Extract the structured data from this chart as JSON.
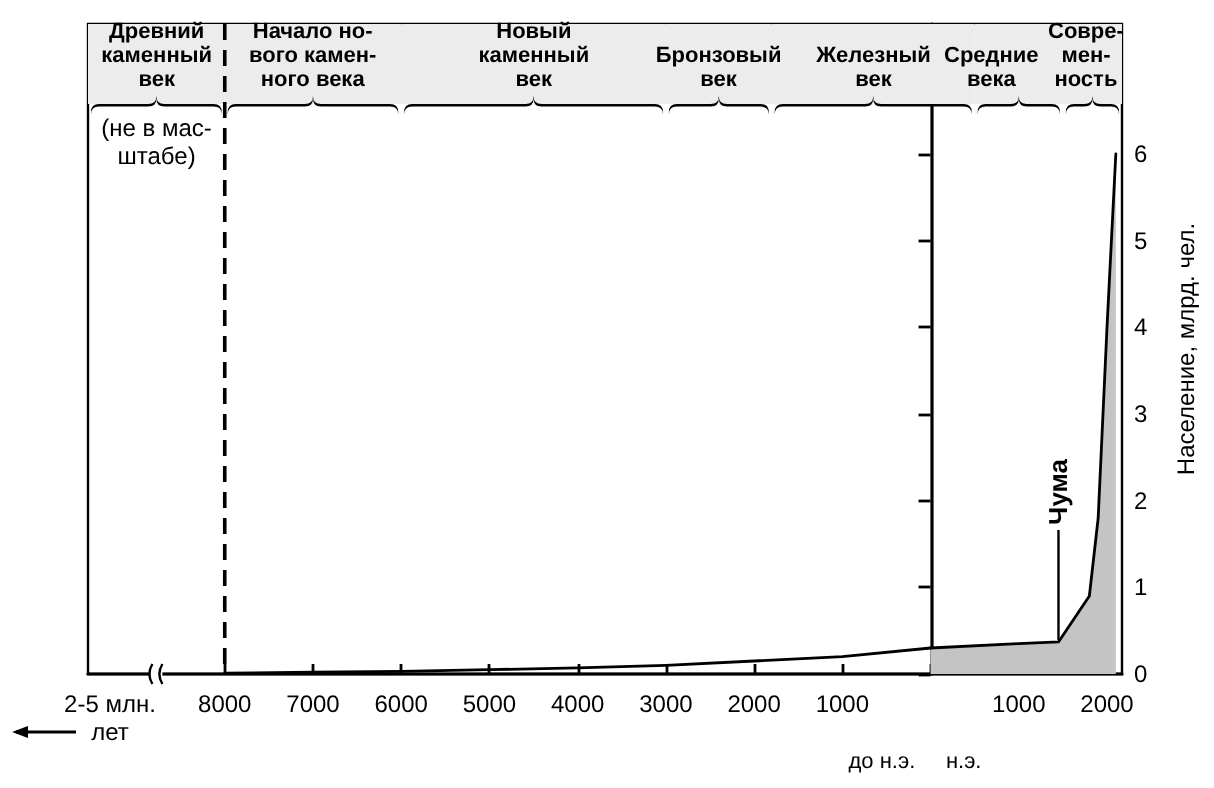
{
  "chart_data": {
    "type": "line",
    "series": [
      {
        "type": "line",
        "color": "#000000",
        "x": [
          -8000,
          -7000,
          -6000,
          -5000,
          -4000,
          -3000,
          -2000,
          -1000,
          0
        ],
        "values": [
          0.01,
          0.02,
          0.03,
          0.05,
          0.07,
          0.1,
          0.15,
          0.2,
          0.3
        ]
      },
      {
        "type": "area",
        "color": "#c4c4c4",
        "x": [
          0,
          1000,
          1450,
          1800,
          1900,
          2000,
          2100
        ],
        "values": [
          0.3,
          0.35,
          0.37,
          0.9,
          1.8,
          4,
          6
        ]
      }
    ],
    "xlim": [
      -9550,
      2170
    ],
    "xticks": [
      {
        "value": -8000,
        "label": "8000"
      },
      {
        "value": -7000,
        "label": "7000"
      },
      {
        "value": -6000,
        "label": "6000"
      },
      {
        "value": -5000,
        "label": "5000"
      },
      {
        "value": -4000,
        "label": "4000"
      },
      {
        "value": -3000,
        "label": "3000"
      },
      {
        "value": -2000,
        "label": "2000"
      },
      {
        "value": -1000,
        "label": "1000"
      },
      {
        "value": 0,
        "label": null
      },
      1000,
      2000
    ],
    "ylim": [
      0,
      7.5
    ],
    "yticks": [
      0,
      1,
      2,
      3,
      4,
      5,
      6
    ],
    "xlabel": "до н.э.     н.э.",
    "ylabel": "Население, млрд. чел.",
    "marker": "none",
    "ref_lines": [
      {
        "axis": "x",
        "value": -8000,
        "line_style": "dashed"
      }
    ],
    "bands": [
      {
        "axis": "x",
        "from": -9550,
        "to": -8000,
        "label": "Древний\nкаменный\nвек"
      },
      {
        "axis": "x",
        "from": -8000,
        "to": -6000,
        "label": "Начало но-\nвого камен-\nного века"
      },
      {
        "axis": "x",
        "from": -6000,
        "to": -3000,
        "label": "Новый\nкаменный\nвек"
      },
      {
        "axis": "x",
        "from": -3000,
        "to": -1800,
        "label": "Бронзовый\nвек"
      },
      {
        "axis": "x",
        "from": -1800,
        "to": 500,
        "label": "Железный\nвек"
      },
      {
        "axis": "x",
        "from": 500,
        "to": 1500,
        "label": "Средние\nвека"
      },
      {
        "axis": "x",
        "from": 1500,
        "to": 2170,
        "label": "Совре-\nмен-\nность"
      }
    ],
    "annotations": [
      {
        "text": "(не в мас-\nштабе)",
        "x": -8775,
        "y": 6.6
      },
      "2-5 млн. лет",
      {
        "text": "Чума",
        "x": 1450,
        "y": 0.37
      }
    ]
  }
}
